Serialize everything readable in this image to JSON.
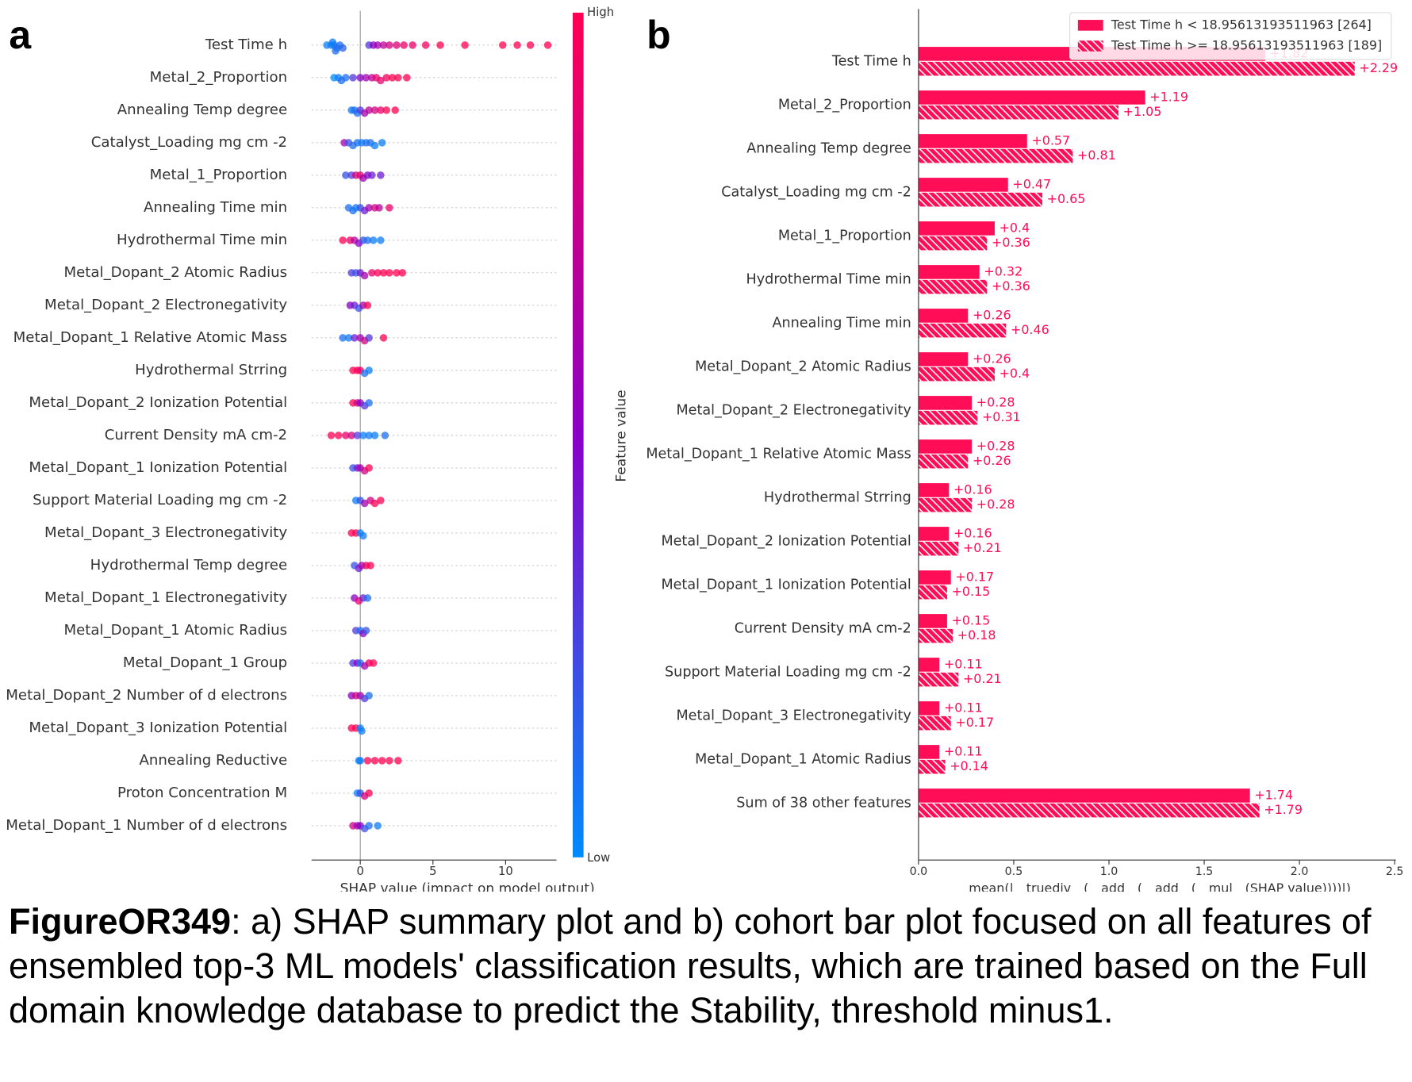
{
  "figure": {
    "panel_labels": [
      "a",
      "b"
    ],
    "caption": {
      "label": "FigureOR349",
      "text": ": a) SHAP summary plot and b) cohort bar plot focused on all features of ensembled top-3 ML models' classification results, which are trained based on the Full domain knowledge database to predict the Stability, threshold minus1."
    }
  },
  "chart_data": [
    {
      "type": "beeswarm",
      "xlabel": "SHAP value (impact on model output)",
      "xlim": [
        -3.35,
        13.5
      ],
      "xticks": [
        0,
        5,
        10
      ],
      "grid": true,
      "colorbar": {
        "label": "Feature value",
        "high": "High",
        "low": "Low",
        "colors": [
          "#008bfb",
          "#8a00c6",
          "#ff0052"
        ]
      },
      "series": [
        {
          "name": "Test Time h",
          "values": [
            -2.3,
            -2,
            -1.8,
            -1.6,
            -1.4,
            -1.2,
            -1.9,
            -1.7,
            0.6,
            0.9,
            1.2,
            1.6,
            2,
            2.5,
            3,
            3.6,
            4.5,
            5.5,
            7.2,
            9.8,
            10.8,
            11.7,
            12.9
          ],
          "feature_values": [
            0.05,
            0.05,
            0.1,
            0.08,
            0.1,
            0.15,
            0.05,
            0.1,
            0.3,
            0.5,
            0.6,
            0.7,
            0.8,
            0.85,
            0.9,
            0.9,
            0.95,
            1,
            1,
            1,
            1,
            1,
            1
          ]
        },
        {
          "name": "Metal_2_Proportion",
          "values": [
            -1.8,
            -1.5,
            -1.3,
            -1,
            -0.5,
            0,
            0.4,
            0.8,
            1.1,
            1.4,
            1.8,
            2.2,
            2.6,
            3.2
          ],
          "feature_values": [
            0,
            0.05,
            0.1,
            0.1,
            0.3,
            0.5,
            0.6,
            0.7,
            0.9,
            0.9,
            0.95,
            1,
            1,
            1
          ]
        },
        {
          "name": "Annealing Temp degree",
          "values": [
            -0.6,
            -0.4,
            -0.2,
            0,
            0.3,
            0.6,
            1,
            1.4,
            1.8,
            2.4
          ],
          "feature_values": [
            0.05,
            0.1,
            0.1,
            0.3,
            0.6,
            0.7,
            0.8,
            0.9,
            1,
            1
          ]
        },
        {
          "name": "Catalyst_Loading mg cm -2",
          "values": [
            -1.1,
            -0.8,
            -0.5,
            -0.2,
            0.1,
            0.4,
            0.7,
            1,
            1.5
          ],
          "feature_values": [
            0.6,
            0.2,
            0.1,
            0.1,
            0.05,
            0.1,
            0.1,
            0.05,
            0.05
          ]
        },
        {
          "name": "Metal_1_Proportion",
          "values": [
            -1,
            -0.6,
            -0.3,
            0,
            0.2,
            0.5,
            0.8,
            1.4
          ],
          "feature_values": [
            0.2,
            0.3,
            0.8,
            0.9,
            0.6,
            0.5,
            0.4,
            0.4
          ]
        },
        {
          "name": "Annealing Time min",
          "values": [
            -0.8,
            -0.5,
            -0.3,
            0,
            0.3,
            0.6,
            1,
            1.3,
            2
          ],
          "feature_values": [
            0.1,
            0.1,
            0.05,
            0.2,
            0.4,
            0.6,
            0.8,
            0.7,
            0.9
          ]
        },
        {
          "name": "Hydrothermal Time min",
          "values": [
            -1.2,
            -0.7,
            -0.4,
            -0.1,
            0.2,
            0.5,
            0.9,
            1.4
          ],
          "feature_values": [
            1,
            0.9,
            0.7,
            0.5,
            0.2,
            0.1,
            0.05,
            0.05
          ]
        },
        {
          "name": "Metal_Dopant_2 Atomic Radius",
          "values": [
            -0.6,
            -0.3,
            0,
            0.3,
            0.8,
            1.2,
            1.6,
            2,
            2.5,
            2.9
          ],
          "feature_values": [
            0.3,
            0.2,
            0.4,
            0.6,
            0.9,
            1,
            1,
            1,
            1,
            1
          ]
        },
        {
          "name": "Metal_Dopant_2 Electronegativity",
          "values": [
            -0.7,
            -0.4,
            -0.1,
            0.2,
            0.5
          ],
          "feature_values": [
            0.5,
            0.4,
            0.2,
            0.6,
            1
          ]
        },
        {
          "name": "Metal_Dopant_1 Relative Atomic Mass",
          "values": [
            -1.2,
            -0.8,
            -0.4,
            0,
            0.3,
            0.6,
            1.6
          ],
          "feature_values": [
            0.1,
            0.05,
            0.4,
            0.6,
            0.8,
            0.3,
            1
          ]
        },
        {
          "name": "Hydrothermal Strring",
          "values": [
            -0.5,
            -0.2,
            0,
            0.3,
            0.6
          ],
          "feature_values": [
            1,
            1,
            0.9,
            0.1,
            0.05
          ]
        },
        {
          "name": "Metal_Dopant_2 Ionization Potential",
          "values": [
            -0.5,
            -0.2,
            0,
            0.3,
            0.6
          ],
          "feature_values": [
            1,
            0.8,
            0.5,
            0.3,
            0.1
          ]
        },
        {
          "name": "Current Density mA cm-2",
          "values": [
            -2,
            -1.5,
            -1,
            -0.6,
            -0.2,
            0.2,
            0.6,
            1,
            1.7
          ],
          "feature_values": [
            1,
            1,
            0.9,
            0.8,
            0.3,
            0.05,
            0.05,
            0.05,
            0.1
          ]
        },
        {
          "name": "Metal_Dopant_1 Ionization Potential",
          "values": [
            -0.5,
            -0.2,
            0,
            0.3,
            0.6
          ],
          "feature_values": [
            0.2,
            0.4,
            0.6,
            0.8,
            1
          ]
        },
        {
          "name": "Support Material Loading mg cm -2",
          "values": [
            -0.3,
            0,
            0.3,
            0.7,
            1,
            1.4
          ],
          "feature_values": [
            0.05,
            0.2,
            0.6,
            0.8,
            1,
            1
          ]
        },
        {
          "name": "Metal_Dopant_3 Electronegativity",
          "values": [
            -0.6,
            -0.3,
            0,
            0.2
          ],
          "feature_values": [
            1,
            1,
            0.05,
            0.05
          ]
        },
        {
          "name": "Hydrothermal Temp degree",
          "values": [
            -0.4,
            -0.1,
            0.1,
            0.4,
            0.7
          ],
          "feature_values": [
            0.2,
            0.4,
            0.6,
            0.9,
            1
          ]
        },
        {
          "name": "Metal_Dopant_1 Electronegativity",
          "values": [
            -0.4,
            -0.1,
            0.2,
            0.5
          ],
          "feature_values": [
            0.5,
            0.9,
            0.4,
            0.1
          ]
        },
        {
          "name": "Metal_Dopant_1 Atomic Radius",
          "values": [
            -0.3,
            0,
            0.2,
            0.4
          ],
          "feature_values": [
            0.3,
            0.1,
            0.5,
            0.2
          ]
        },
        {
          "name": "Metal_Dopant_1 Group",
          "values": [
            -0.5,
            -0.2,
            0,
            0.3,
            0.6,
            0.9
          ],
          "feature_values": [
            0.3,
            0.5,
            0.1,
            0.6,
            0.9,
            1
          ]
        },
        {
          "name": "Metal_Dopant_2 Number of d electrons",
          "values": [
            -0.6,
            -0.3,
            0,
            0.3,
            0.6
          ],
          "feature_values": [
            0.5,
            0.8,
            0.6,
            0.3,
            0.1
          ]
        },
        {
          "name": "Metal_Dopant_3 Ionization Potential",
          "values": [
            -0.6,
            -0.3,
            0,
            0.1
          ],
          "feature_values": [
            1,
            1,
            0.05,
            0.05
          ]
        },
        {
          "name": "Annealing Reductive",
          "values": [
            -0.1,
            0,
            0.5,
            1,
            1.5,
            2,
            2.6
          ],
          "feature_values": [
            0.05,
            0.05,
            1,
            1,
            1,
            1,
            1
          ]
        },
        {
          "name": "Proton Concentration M",
          "values": [
            -0.2,
            0,
            0.3,
            0.6
          ],
          "feature_values": [
            0.05,
            0.2,
            0.8,
            1
          ]
        },
        {
          "name": "Metal_Dopant_1 Number of d electrons",
          "values": [
            -0.5,
            -0.2,
            0,
            0.3,
            0.6,
            1.2
          ],
          "feature_values": [
            0.8,
            0.6,
            0.5,
            0.2,
            0.1,
            0.05
          ]
        }
      ]
    },
    {
      "type": "bar",
      "orientation": "horizontal",
      "xlabel": "mean(|__truediv__(__add__(__add__(__mul__(SHAP value))))|)",
      "xlim": [
        0,
        2.5
      ],
      "xticks": [
        {
          "value": 0,
          "label": "0.0"
        },
        0.5,
        {
          "value": 1,
          "label": "1.0"
        },
        1.5,
        {
          "value": 2,
          "label": "2.0"
        },
        2.5
      ],
      "legend": "upper right",
      "categories": [
        "Test Time h",
        "Metal_2_Proportion",
        "Annealing Temp degree",
        "Catalyst_Loading mg cm -2",
        "Metal_1_Proportion",
        "Hydrothermal Time min",
        "Annealing Time min",
        "Metal_Dopant_2 Atomic Radius",
        "Metal_Dopant_2 Electronegativity",
        "Metal_Dopant_1 Relative Atomic Mass",
        "Hydrothermal Strring",
        "Metal_Dopant_2 Ionization Potential",
        "Metal_Dopant_1 Ionization Potential",
        "Current Density mA cm-2",
        "Support Material Loading mg cm -2",
        "Metal_Dopant_3 Electronegativity",
        "Metal_Dopant_1 Atomic Radius",
        "Sum of 38 other features"
      ],
      "series": [
        {
          "name": "Test Time h < 18.95613193511963 [264]",
          "color": "#ff0d57",
          "hatch": false,
          "values": [
            1.82,
            1.19,
            0.57,
            0.47,
            0.4,
            0.32,
            0.26,
            0.26,
            0.28,
            0.28,
            0.16,
            0.16,
            0.17,
            0.15,
            0.11,
            0.11,
            0.11,
            1.74
          ],
          "value_labels": [
            "+1.82",
            "+1.19",
            "+0.57",
            "+0.47",
            "+0.4",
            "+0.32",
            "+0.26",
            "+0.26",
            "+0.28",
            "+0.28",
            "+0.16",
            "+0.16",
            "+0.17",
            "+0.15",
            "+0.11",
            "+0.11",
            "+0.11",
            "+1.74"
          ]
        },
        {
          "name": "Test Time h >= 18.95613193511963 [189]",
          "color": "#ff0d57",
          "hatch": true,
          "values": [
            2.29,
            1.05,
            0.81,
            0.65,
            0.36,
            0.36,
            0.46,
            0.4,
            0.31,
            0.26,
            0.28,
            0.21,
            0.15,
            0.18,
            0.21,
            0.17,
            0.14,
            1.79
          ],
          "value_labels": [
            "+2.29",
            "+1.05",
            "+0.81",
            "+0.65",
            "+0.36",
            "+0.36",
            "+0.46",
            "+0.4",
            "+0.31",
            "+0.26",
            "+0.28",
            "+0.21",
            "+0.15",
            "+0.18",
            "+0.21",
            "+0.17",
            "+0.14",
            "+1.79"
          ]
        }
      ]
    }
  ]
}
